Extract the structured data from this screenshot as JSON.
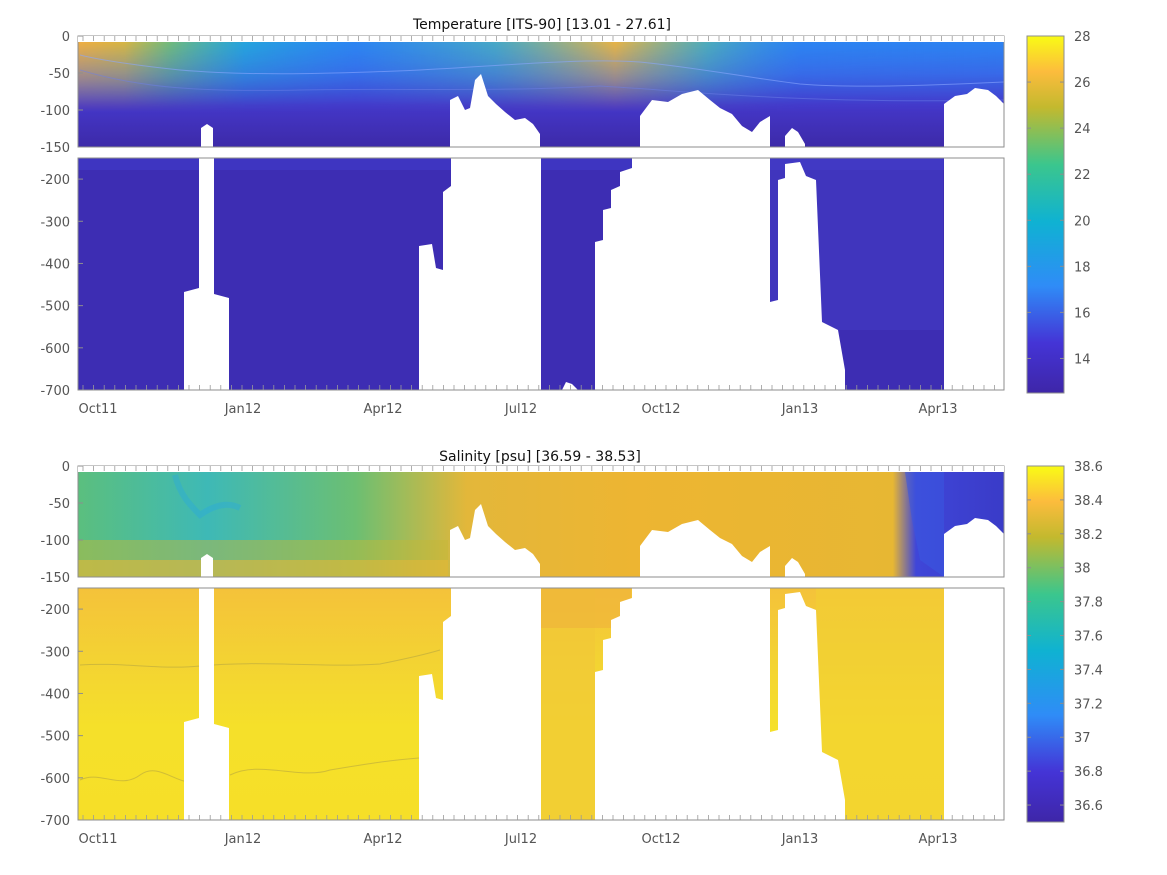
{
  "chart_data": [
    {
      "type": "heatmap",
      "title": "Temperature [ITS-90]   [13.01 - 27.61]",
      "xlabel": "",
      "ylabel": "",
      "x_ticks": [
        "Oct11",
        "Jan12",
        "Apr12",
        "Jul12",
        "Oct12",
        "Jan13",
        "Apr13"
      ],
      "ylim_upper": [
        -150,
        0
      ],
      "yticks_upper": [
        0,
        -50,
        -100,
        -150
      ],
      "ylim_lower": [
        -700,
        -150
      ],
      "yticks_lower": [
        -200,
        -300,
        -400,
        -500,
        -600,
        -700
      ],
      "colorbar": {
        "min": 12.5,
        "max": 28,
        "ticks": [
          14,
          16,
          18,
          20,
          22,
          24,
          26,
          28
        ]
      },
      "data_range": [
        13.01,
        27.61
      ],
      "summary_values": {
        "surface_summer_2011": 27.0,
        "surface_summer_2012": 26.5,
        "thermocline_50m": 17.0,
        "mixed_surface_winter": 15.5,
        "deep_layer": 13.2
      }
    },
    {
      "type": "heatmap",
      "title": "Salinity [psu]   [36.59 - 38.53]",
      "xlabel": "",
      "ylabel": "",
      "x_ticks": [
        "Oct11",
        "Jan12",
        "Apr12",
        "Jul12",
        "Oct12",
        "Jan13",
        "Apr13"
      ],
      "ylim_upper": [
        -150,
        0
      ],
      "yticks_upper": [
        0,
        -50,
        -100,
        -150
      ],
      "ylim_lower": [
        -700,
        -150
      ],
      "yticks_lower": [
        -200,
        -300,
        -400,
        -500,
        -600,
        -700
      ],
      "colorbar": {
        "min": 36.5,
        "max": 38.6,
        "ticks": [
          36.6,
          36.8,
          37,
          37.2,
          37.4,
          37.6,
          37.8,
          38,
          38.2,
          38.4,
          38.6
        ]
      },
      "data_range": [
        36.59,
        38.53
      ],
      "summary_values": {
        "surface_late_2011": 37.6,
        "upper_layer_2012": 38.1,
        "deep_layer": 38.5,
        "surface_spring_2013": 36.7
      }
    }
  ]
}
